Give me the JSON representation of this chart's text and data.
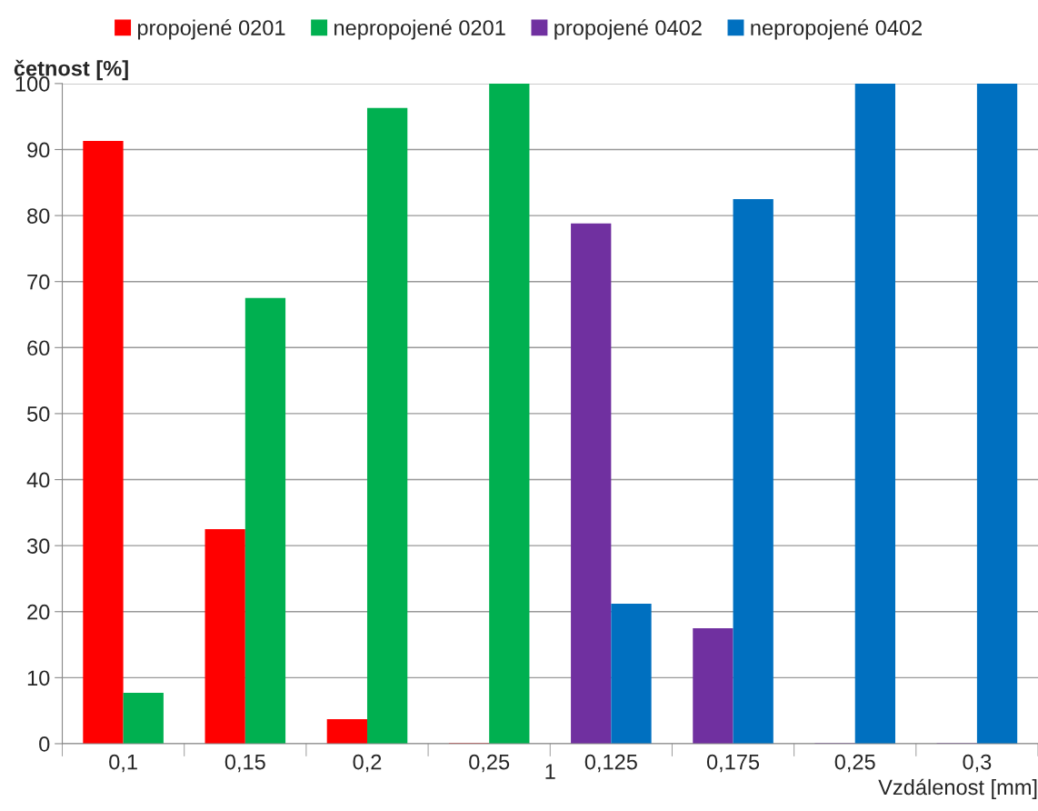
{
  "chart_data": {
    "type": "bar",
    "ylabel": "četnost [%]",
    "xlabel": "Vzdálenost [mm]",
    "categories": [
      "0,1",
      "0,15",
      "0,2",
      "0,25",
      "0,125",
      "0,175",
      "0,25",
      "0,3"
    ],
    "series": [
      {
        "name": "propojené 0201",
        "color": "#ff0000",
        "values": [
          91.3,
          32.5,
          3.7,
          0,
          null,
          null,
          null,
          null
        ]
      },
      {
        "name": "nepropojené 0201",
        "color": "#00b050",
        "values": [
          7.7,
          67.5,
          96.3,
          100,
          null,
          null,
          null,
          null
        ]
      },
      {
        "name": "propojené 0402",
        "color": "#7030a0",
        "values": [
          null,
          null,
          null,
          null,
          78.8,
          17.5,
          0,
          0
        ]
      },
      {
        "name": "nepropojené 0402",
        "color": "#0070c0",
        "values": [
          null,
          null,
          null,
          null,
          21.2,
          82.5,
          100,
          100
        ]
      }
    ],
    "ylim": [
      0,
      100
    ],
    "yticks": [
      0,
      10,
      20,
      30,
      40,
      50,
      60,
      70,
      80,
      90,
      100
    ],
    "grid": "y",
    "legend": "top",
    "annotations": [
      "1"
    ]
  }
}
